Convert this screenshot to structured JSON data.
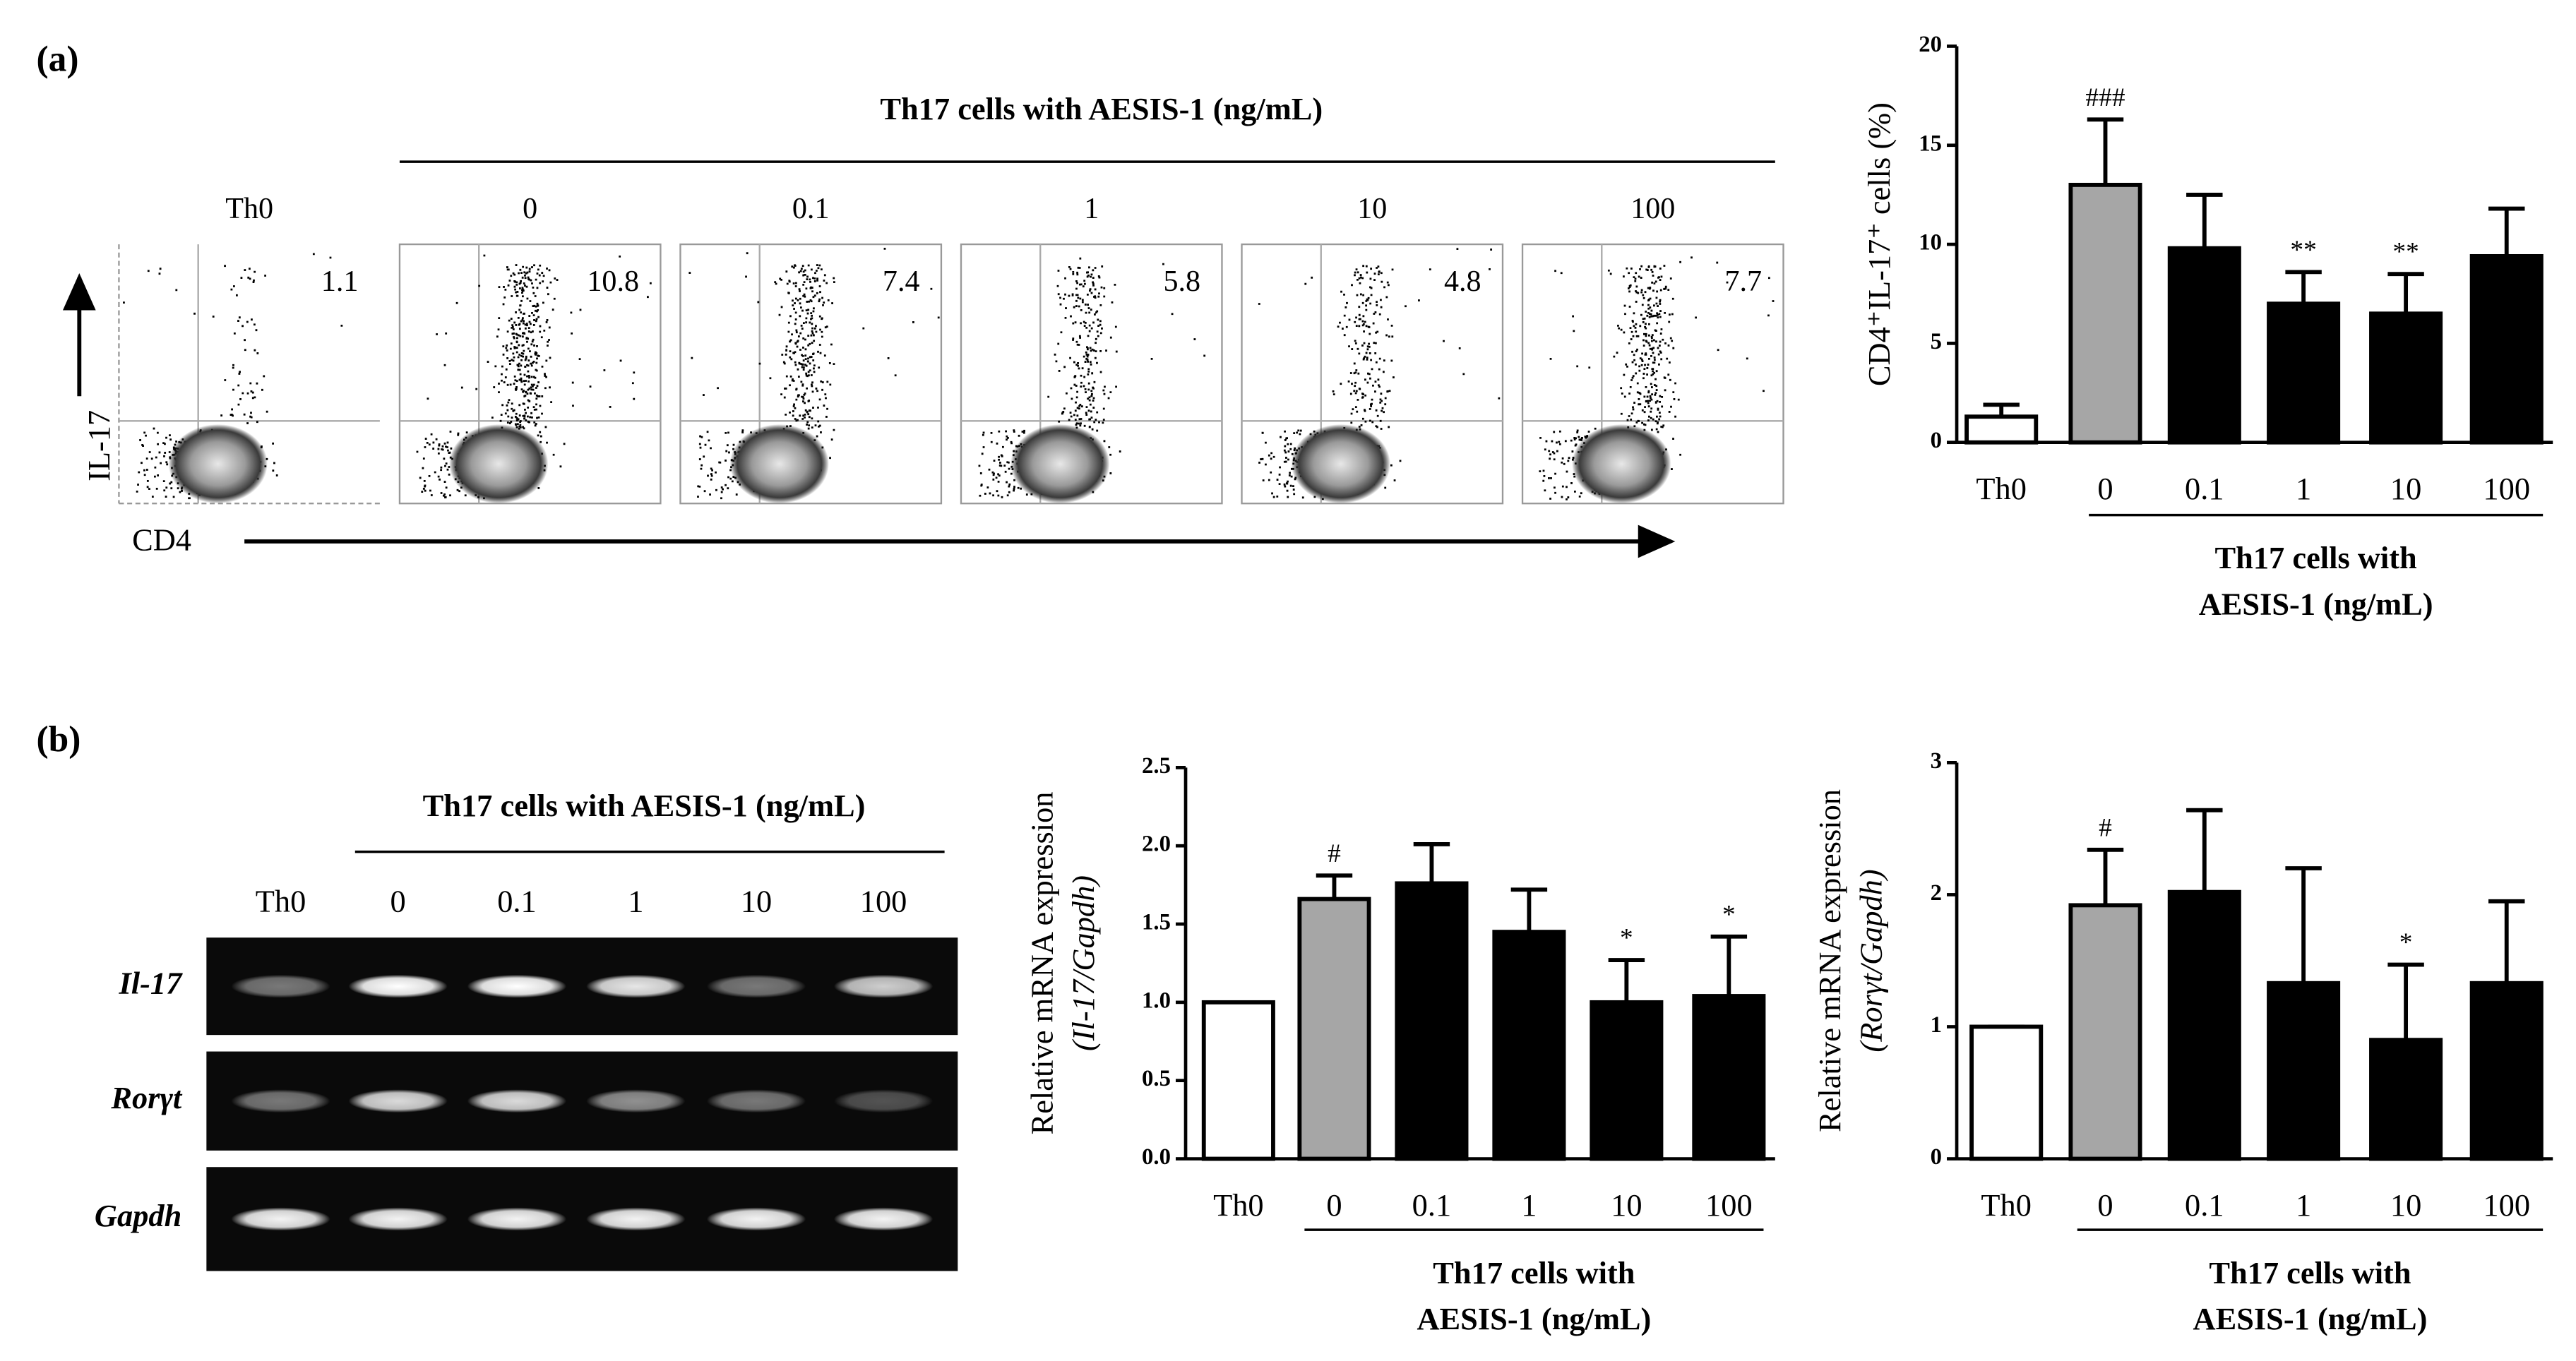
{
  "panel_labels": [
    "(a)",
    "(b)"
  ],
  "flow_panel": {
    "title": "Th17 cells with AESIS-1 (ng/mL)",
    "columns": [
      "Th0",
      "0",
      "0.1",
      "1",
      "10",
      "100"
    ],
    "quadrant_values": [
      1.1,
      10.8,
      7.4,
      5.8,
      4.8,
      7.7
    ],
    "y_label": "IL-17",
    "x_label": "CD4"
  },
  "gel_panel": {
    "title": "Th17 cells with AESIS-1 (ng/mL)",
    "lanes": [
      "Th0",
      "0",
      "0.1",
      "1",
      "10",
      "100"
    ],
    "genes": [
      "Il-17",
      "Rorγt",
      "Gapdh"
    ]
  },
  "chart_data": [
    {
      "type": "bar",
      "y_label": "CD4⁺IL-17⁺ cells (%)",
      "categories": [
        "Th0",
        "0",
        "0.1",
        "1",
        "10",
        "100"
      ],
      "values": [
        1.3,
        13.0,
        9.8,
        7.0,
        6.5,
        9.4
      ],
      "errors": [
        0.6,
        3.3,
        2.7,
        1.6,
        2.0,
        2.4
      ],
      "colors": [
        "#ffffff",
        "#a6a6a6",
        "#000000",
        "#000000",
        "#000000",
        "#000000"
      ],
      "annotations": [
        null,
        "###",
        null,
        "**",
        "**",
        null
      ],
      "group_label": [
        "Th17 cells with",
        "AESIS-1 (ng/mL)"
      ],
      "ylim": [
        0,
        20
      ],
      "yticks": [
        0,
        5,
        10,
        15,
        20
      ]
    },
    {
      "type": "bar",
      "y_label": "Relative mRNA expression",
      "y_label_sub": "(Il-17/Gapdh)",
      "categories": [
        "Th0",
        "0",
        "0.1",
        "1",
        "10",
        "100"
      ],
      "values": [
        1.0,
        1.66,
        1.76,
        1.45,
        1.0,
        1.04
      ],
      "errors": [
        0,
        0.15,
        0.25,
        0.27,
        0.27,
        0.38
      ],
      "colors": [
        "#ffffff",
        "#a6a6a6",
        "#000000",
        "#000000",
        "#000000",
        "#000000"
      ],
      "annotations": [
        null,
        "#",
        null,
        null,
        "*",
        "*"
      ],
      "group_label": [
        "Th17 cells with",
        "AESIS-1 (ng/mL)"
      ],
      "ylim": [
        0,
        2.5
      ],
      "yticks": [
        {
          "value": 0,
          "label": "0.0"
        },
        0.5,
        {
          "value": 1,
          "label": "1.0"
        },
        1.5,
        {
          "value": 2,
          "label": "2.0"
        },
        2.5
      ]
    },
    {
      "type": "bar",
      "y_label": "Relative mRNA expression",
      "y_label_sub": "(Rorγt/Gapdh)",
      "categories": [
        "Th0",
        "0",
        "0.1",
        "1",
        "10",
        "100"
      ],
      "values": [
        1.0,
        1.92,
        2.02,
        1.33,
        0.9,
        1.33
      ],
      "errors": [
        0,
        0.42,
        0.62,
        0.87,
        0.57,
        0.62
      ],
      "colors": [
        "#ffffff",
        "#a6a6a6",
        "#000000",
        "#000000",
        "#000000",
        "#000000"
      ],
      "annotations": [
        null,
        "#",
        null,
        null,
        "*",
        null
      ],
      "group_label": [
        "Th17 cells with",
        "AESIS-1 (ng/mL)"
      ],
      "ylim": [
        0,
        3
      ],
      "yticks": [
        0,
        1,
        2,
        3
      ]
    }
  ]
}
